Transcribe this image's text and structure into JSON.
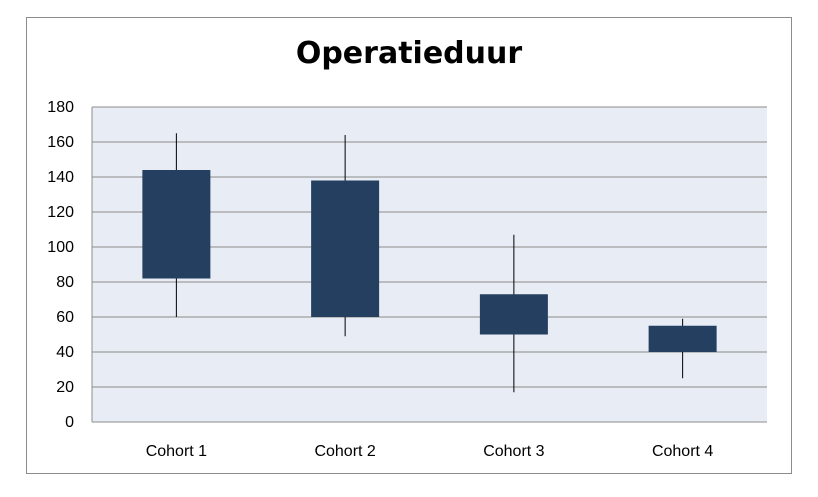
{
  "chart_data": {
    "type": "boxplot",
    "title": "Operatieduur",
    "categories": [
      "Cohort 1",
      "Cohort 2",
      "Cohort 3",
      "Cohort 4"
    ],
    "boxes": [
      {
        "category": "Cohort 1",
        "min": 60,
        "q1": 82,
        "q3": 144,
        "max": 165
      },
      {
        "category": "Cohort 2",
        "min": 49,
        "q1": 60,
        "q3": 138,
        "max": 164
      },
      {
        "category": "Cohort 3",
        "min": 17,
        "q1": 50,
        "q3": 73,
        "max": 107
      },
      {
        "category": "Cohort 4",
        "min": 25,
        "q1": 40,
        "q3": 55,
        "max": 59
      }
    ],
    "y_ticks": [
      "0",
      "20",
      "40",
      "60",
      "80",
      "100",
      "120",
      "140",
      "160",
      "180"
    ],
    "ylim": [
      0,
      180
    ],
    "grid": true,
    "colors": {
      "box": "#243f60",
      "whisker": "#000000",
      "plot_bg": "#e8ecf5",
      "grid": "#8c8c8c"
    }
  }
}
